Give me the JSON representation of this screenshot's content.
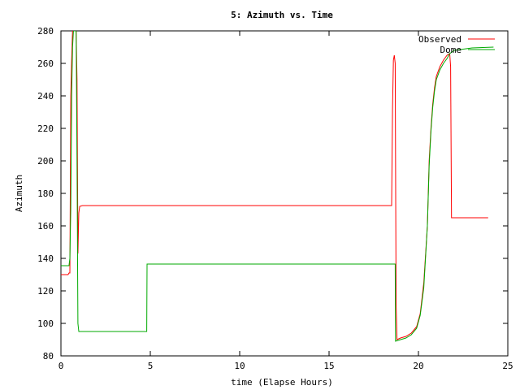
{
  "chart_data": {
    "type": "line",
    "title": "5: Azimuth vs. Time",
    "xlabel": "time (Elapse Hours)",
    "ylabel": "Azimuth",
    "xlim": [
      0,
      25
    ],
    "ylim": [
      80,
      280
    ],
    "xticks": [
      0,
      5,
      10,
      15,
      20,
      25
    ],
    "yticks": [
      80,
      100,
      120,
      140,
      160,
      180,
      200,
      220,
      240,
      260,
      280
    ],
    "grid": false,
    "legend_position": "top-right",
    "series": [
      {
        "name": "Observed",
        "color": "#ff0000",
        "points": [
          [
            0,
            130
          ],
          [
            0.4,
            130
          ],
          [
            0.45,
            131
          ],
          [
            0.5,
            131
          ],
          [
            0.55,
            240
          ],
          [
            0.6,
            262
          ],
          [
            0.65,
            280
          ],
          [
            0.7,
            280
          ],
          [
            0.8,
            280
          ],
          [
            0.85,
            280
          ],
          [
            0.9,
            250
          ],
          [
            0.95,
            143
          ],
          [
            1.0,
            168
          ],
          [
            1.05,
            172
          ],
          [
            1.2,
            172.5
          ],
          [
            5,
            172.5
          ],
          [
            10,
            172.5
          ],
          [
            15,
            172.5
          ],
          [
            18.5,
            172.5
          ],
          [
            18.55,
            232
          ],
          [
            18.6,
            262
          ],
          [
            18.65,
            265
          ],
          [
            18.7,
            260
          ],
          [
            18.75,
            112
          ],
          [
            18.8,
            90
          ],
          [
            19,
            91
          ],
          [
            19.3,
            92
          ],
          [
            19.6,
            94
          ],
          [
            19.9,
            98
          ],
          [
            20.1,
            106
          ],
          [
            20.3,
            125
          ],
          [
            20.5,
            160
          ],
          [
            20.6,
            200
          ],
          [
            20.7,
            220
          ],
          [
            20.8,
            235
          ],
          [
            20.9,
            245
          ],
          [
            21.0,
            252
          ],
          [
            21.2,
            258
          ],
          [
            21.4,
            262
          ],
          [
            21.6,
            265
          ],
          [
            21.75,
            266
          ],
          [
            21.8,
            258
          ],
          [
            21.85,
            165
          ],
          [
            22,
            165
          ],
          [
            23,
            165
          ],
          [
            23.9,
            165
          ]
        ]
      },
      {
        "name": "Dome",
        "color": "#00aa00",
        "points": [
          [
            0,
            135.5
          ],
          [
            0.45,
            135.5
          ],
          [
            0.5,
            140
          ],
          [
            0.55,
            170
          ],
          [
            0.6,
            240
          ],
          [
            0.65,
            270
          ],
          [
            0.7,
            280
          ],
          [
            0.8,
            280
          ],
          [
            0.85,
            280
          ],
          [
            0.9,
            200
          ],
          [
            0.95,
            100
          ],
          [
            1.0,
            95
          ],
          [
            1.5,
            95
          ],
          [
            4.8,
            95
          ],
          [
            4.82,
            136.5
          ],
          [
            10,
            136.5
          ],
          [
            15,
            136.5
          ],
          [
            18.7,
            136.5
          ],
          [
            18.72,
            89
          ],
          [
            19,
            90
          ],
          [
            19.3,
            91
          ],
          [
            19.6,
            93
          ],
          [
            19.9,
            97
          ],
          [
            20.1,
            105
          ],
          [
            20.3,
            122
          ],
          [
            20.5,
            160
          ],
          [
            20.6,
            197
          ],
          [
            20.7,
            218
          ],
          [
            20.8,
            233
          ],
          [
            20.9,
            243
          ],
          [
            21.0,
            250
          ],
          [
            21.2,
            256
          ],
          [
            21.4,
            260
          ],
          [
            21.6,
            263
          ],
          [
            21.75,
            266
          ],
          [
            22,
            268
          ],
          [
            23,
            269.5
          ],
          [
            24.2,
            270
          ]
        ]
      }
    ]
  }
}
